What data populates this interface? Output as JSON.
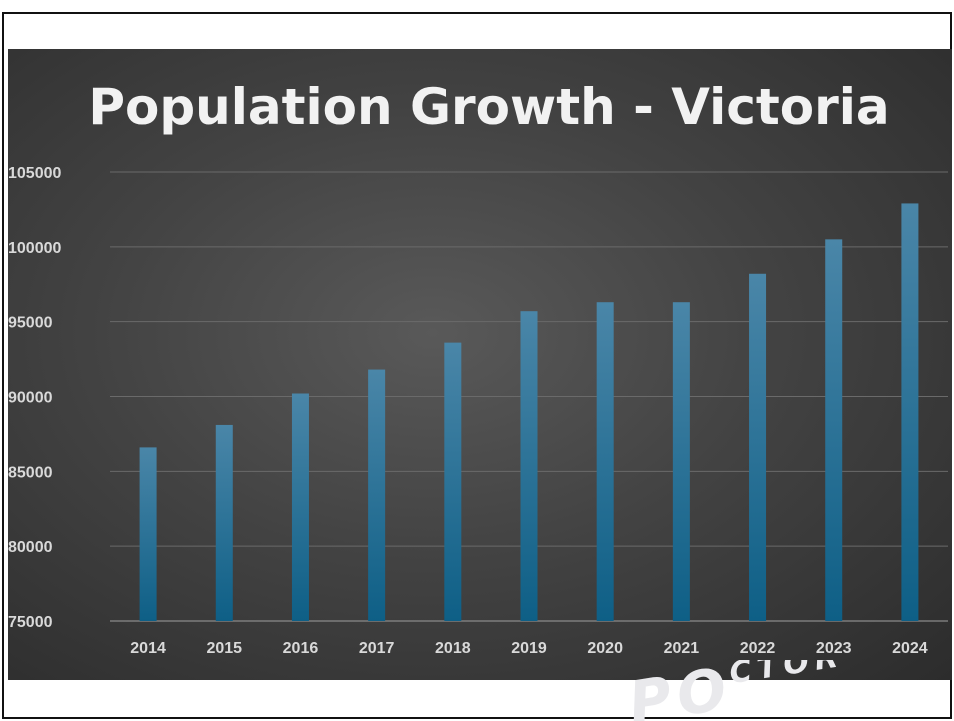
{
  "chart_data": {
    "type": "bar",
    "title": "Population Growth - Victoria",
    "categories": [
      "2014",
      "2015",
      "2016",
      "2017",
      "2018",
      "2019",
      "2020",
      "2021",
      "2022",
      "2023",
      "2024"
    ],
    "values": [
      86600,
      88100,
      90200,
      91800,
      93600,
      95700,
      96300,
      96300,
      98200,
      100500,
      102900
    ],
    "ylim": [
      75000,
      105000
    ],
    "yticks": [
      "75000",
      "80000",
      "85000",
      "90000",
      "95000",
      "100000",
      "105000"
    ],
    "xlabel": "",
    "ylabel": "",
    "grid": true,
    "legend": "none",
    "colors": {
      "bar_top": "#4a86a8",
      "bar_bottom": "#0e5f86",
      "background": "#404040",
      "title": "#f2f2f2",
      "tick": "#d9d9d9"
    }
  },
  "watermark": {
    "text": "VICTORIA POPULATION"
  }
}
